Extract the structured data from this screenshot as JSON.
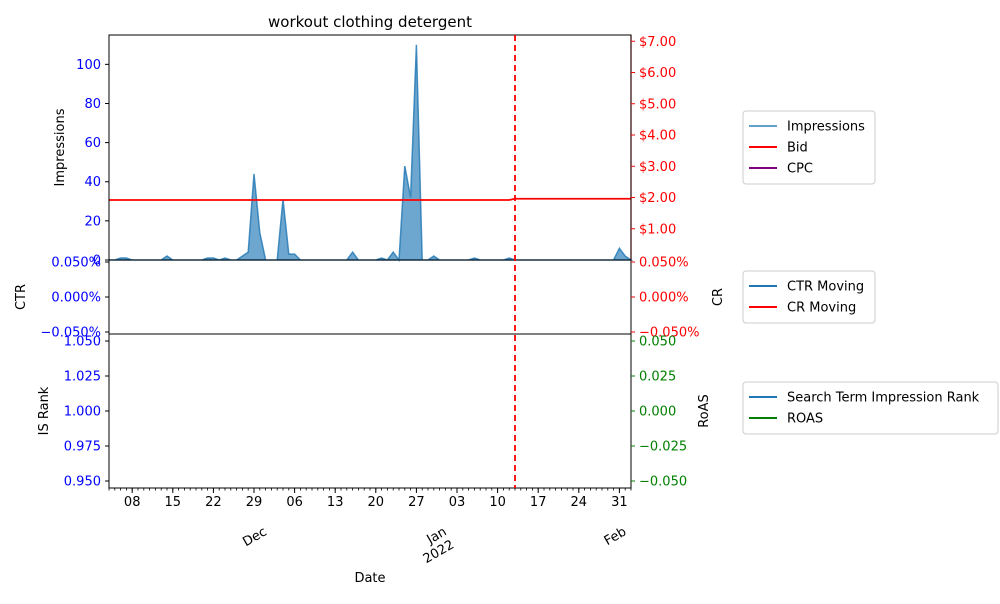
{
  "title": "workout clothing detergent",
  "colors": {
    "impressions": "#1f77b4",
    "bid": "#ff0000",
    "cpc": "#800080",
    "ctr": "#1f77b4",
    "cr": "#ff0000",
    "is_rank": "#1f77b4",
    "roas": "#008000",
    "axis_left": "#0000ff",
    "axis_right_top": "#ff0000",
    "axis_right_bottom": "#008000"
  },
  "chart_data": [
    {
      "type": "area",
      "panel": "top",
      "xlabel": "",
      "ylabel": "Impressions",
      "y2label": "",
      "x_start": "2021-11-04",
      "x_end": "2022-02-02",
      "ylim": [
        0,
        115
      ],
      "yticks": [
        0,
        20,
        40,
        60,
        80,
        100
      ],
      "y2lim": [
        0,
        7.2
      ],
      "y2ticks": [
        "$1.00",
        "$2.00",
        "$3.00",
        "$4.00",
        "$5.00",
        "$6.00",
        "$7.00"
      ],
      "y2tick_values": [
        1,
        2,
        3,
        4,
        5,
        6,
        7
      ],
      "series": [
        {
          "name": "Impressions",
          "axis": "left",
          "values": [
            0,
            0,
            1,
            1,
            0,
            0,
            0,
            0,
            0,
            0,
            2,
            0,
            0,
            0,
            0,
            0,
            0,
            1,
            1,
            0,
            1,
            0,
            0,
            2,
            4,
            44,
            14,
            0,
            0,
            0,
            31,
            3,
            3,
            0,
            0,
            0,
            0,
            0,
            0,
            0,
            0,
            0,
            4,
            0,
            0,
            0,
            0,
            1,
            0,
            4,
            0,
            48,
            32,
            110,
            0,
            0,
            2,
            0,
            0,
            0,
            0,
            0,
            0,
            1,
            0,
            0,
            0,
            0,
            0,
            1,
            0,
            0,
            0,
            0,
            0,
            0,
            0,
            0,
            0,
            0,
            0,
            0,
            0,
            0,
            0,
            0,
            0,
            0,
            6,
            2,
            0
          ]
        },
        {
          "name": "Bid",
          "axis": "right",
          "points": [
            [
              "2021-11-04",
              1.92
            ],
            [
              "2022-01-12",
              1.92
            ],
            [
              "2022-01-13",
              1.96
            ],
            [
              "2022-02-02",
              1.96
            ]
          ]
        },
        {
          "name": "CPC",
          "axis": "right",
          "points": []
        }
      ],
      "vline": "2022-01-13",
      "legend": [
        "Impressions",
        "Bid",
        "CPC"
      ],
      "legend_position": "right"
    },
    {
      "type": "line",
      "panel": "middle",
      "ylabel": "CTR",
      "y2label": "CR",
      "ylim": [
        -0.05,
        0.05
      ],
      "yticks": [
        "−0.050%",
        "0.000%",
        "0.050%"
      ],
      "y2ticks": [
        "−0.050%",
        "0.000%",
        "0.050%"
      ],
      "series": [
        {
          "name": "CTR Moving",
          "values": []
        },
        {
          "name": "CR Moving",
          "values": []
        }
      ],
      "legend": [
        "CTR Moving",
        "CR Moving"
      ],
      "legend_position": "right"
    },
    {
      "type": "line",
      "panel": "bottom",
      "xlabel": "Date",
      "ylabel": "IS Rank",
      "y2label": "RoAS",
      "ylim": [
        0.945,
        1.055
      ],
      "yticks": [
        "0.950",
        "0.975",
        "1.000",
        "1.025",
        "1.050"
      ],
      "y2lim": [
        -0.055,
        0.055
      ],
      "y2ticks": [
        "−0.050",
        "−0.025",
        "0.000",
        "0.025",
        "0.050"
      ],
      "series": [
        {
          "name": "Search Term Impression Rank",
          "values": []
        },
        {
          "name": "ROAS",
          "values": []
        }
      ],
      "xticks": [
        {
          "date": "2021-11-08",
          "label": "08"
        },
        {
          "date": "2021-11-15",
          "label": "15"
        },
        {
          "date": "2021-11-22",
          "label": "22"
        },
        {
          "date": "2021-11-29",
          "label": "29"
        },
        {
          "date": "2021-12-06",
          "label": "06"
        },
        {
          "date": "2021-12-13",
          "label": "13"
        },
        {
          "date": "2021-12-20",
          "label": "20"
        },
        {
          "date": "2021-12-27",
          "label": "27"
        },
        {
          "date": "2022-01-03",
          "label": "03"
        },
        {
          "date": "2022-01-10",
          "label": "10"
        },
        {
          "date": "2022-01-17",
          "label": "17"
        },
        {
          "date": "2022-01-24",
          "label": "24"
        },
        {
          "date": "2022-01-31",
          "label": "31"
        }
      ],
      "month_labels": [
        {
          "date": "2021-12-01",
          "label": "Dec"
        },
        {
          "date": "2022-01-01",
          "label": "Jan\n2022"
        },
        {
          "date": "2022-02-01",
          "label": "Feb"
        }
      ],
      "legend": [
        "Search Term Impression Rank",
        "ROAS"
      ],
      "legend_position": "right"
    }
  ]
}
